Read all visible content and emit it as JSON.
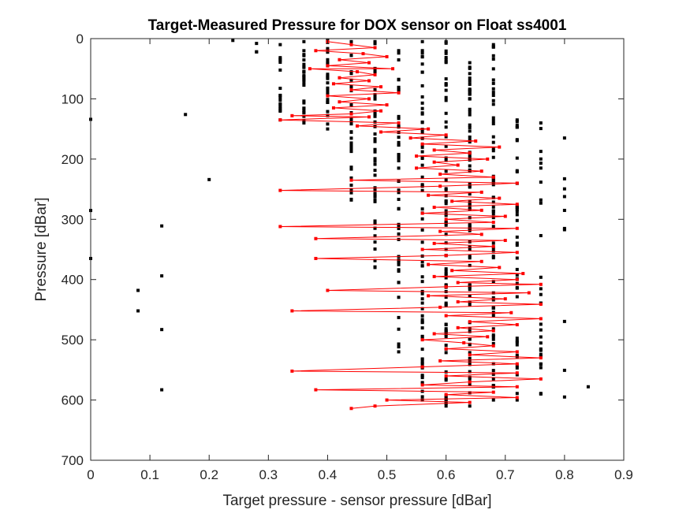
{
  "chart_data": {
    "type": "scatter",
    "title": "Target-Measured Pressure for DOX sensor on Float ss4001",
    "xlabel": "Target pressure - sensor pressure [dBar]",
    "ylabel": "Pressure [dBar]",
    "xlim": [
      0,
      0.9
    ],
    "ylim": [
      0,
      700
    ],
    "y_reversed": true,
    "grid": false,
    "x_ticks": [
      "0",
      "0.1",
      "0.2",
      "0.3",
      "0.4",
      "0.5",
      "0.6",
      "0.7",
      "0.8",
      "0.9"
    ],
    "y_ticks": [
      "0",
      "100",
      "200",
      "300",
      "400",
      "500",
      "600",
      "700"
    ],
    "colors": {
      "all_profiles": "#000000",
      "selected_profile": "#ff0000",
      "axes": "#262626"
    },
    "series": [
      {
        "style": "markers",
        "color": "#000000",
        "columns": [
          {
            "x": 0.0,
            "p_min": 134,
            "p_max": 365,
            "n": 3
          },
          {
            "x": 0.08,
            "p_min": 418,
            "p_max": 452,
            "n": 2
          },
          {
            "x": 0.12,
            "p_min": 311,
            "p_max": 583,
            "n": 4
          },
          {
            "x": 0.16,
            "p_min": 126,
            "p_max": 126,
            "n": 1
          },
          {
            "x": 0.2,
            "p_min": 234,
            "p_max": 234,
            "n": 1
          },
          {
            "x": 0.24,
            "p_min": 3,
            "p_max": 3,
            "n": 1
          },
          {
            "x": 0.28,
            "p_min": 8,
            "p_max": 22,
            "n": 3
          },
          {
            "x": 0.32,
            "p_min": 10,
            "p_max": 135,
            "n": 18
          },
          {
            "x": 0.36,
            "p_min": 5,
            "p_max": 140,
            "n": 28
          },
          {
            "x": 0.4,
            "p_min": 3,
            "p_max": 150,
            "n": 32
          },
          {
            "x": 0.44,
            "p_min": 5,
            "p_max": 268,
            "n": 36
          },
          {
            "x": 0.48,
            "p_min": 5,
            "p_max": 380,
            "n": 48
          },
          {
            "x": 0.52,
            "p_min": 20,
            "p_max": 520,
            "n": 52
          },
          {
            "x": 0.56,
            "p_min": 5,
            "p_max": 600,
            "n": 72
          },
          {
            "x": 0.6,
            "p_min": 5,
            "p_max": 610,
            "n": 80
          },
          {
            "x": 0.64,
            "p_min": 40,
            "p_max": 610,
            "n": 80
          },
          {
            "x": 0.68,
            "p_min": 10,
            "p_max": 600,
            "n": 65
          },
          {
            "x": 0.72,
            "p_min": 135,
            "p_max": 600,
            "n": 40
          },
          {
            "x": 0.76,
            "p_min": 140,
            "p_max": 590,
            "n": 28
          },
          {
            "x": 0.8,
            "p_min": 165,
            "p_max": 595,
            "n": 10
          },
          {
            "x": 0.84,
            "p_min": 578,
            "p_max": 578,
            "n": 1
          }
        ]
      },
      {
        "style": "line-markers",
        "color": "#ff0000",
        "points": [
          {
            "x": 0.4,
            "y": 5
          },
          {
            "x": 0.44,
            "y": 10
          },
          {
            "x": 0.48,
            "y": 15
          },
          {
            "x": 0.38,
            "y": 20
          },
          {
            "x": 0.46,
            "y": 25
          },
          {
            "x": 0.5,
            "y": 30
          },
          {
            "x": 0.42,
            "y": 35
          },
          {
            "x": 0.47,
            "y": 40
          },
          {
            "x": 0.4,
            "y": 45
          },
          {
            "x": 0.51,
            "y": 50
          },
          {
            "x": 0.37,
            "y": 50
          },
          {
            "x": 0.45,
            "y": 55
          },
          {
            "x": 0.48,
            "y": 60
          },
          {
            "x": 0.42,
            "y": 65
          },
          {
            "x": 0.47,
            "y": 70
          },
          {
            "x": 0.41,
            "y": 75
          },
          {
            "x": 0.49,
            "y": 80
          },
          {
            "x": 0.44,
            "y": 85
          },
          {
            "x": 0.52,
            "y": 90
          },
          {
            "x": 0.4,
            "y": 95
          },
          {
            "x": 0.47,
            "y": 100
          },
          {
            "x": 0.42,
            "y": 105
          },
          {
            "x": 0.5,
            "y": 110
          },
          {
            "x": 0.41,
            "y": 115
          },
          {
            "x": 0.49,
            "y": 120
          },
          {
            "x": 0.44,
            "y": 125
          },
          {
            "x": 0.34,
            "y": 128
          },
          {
            "x": 0.47,
            "y": 130
          },
          {
            "x": 0.32,
            "y": 135
          },
          {
            "x": 0.52,
            "y": 140
          },
          {
            "x": 0.45,
            "y": 145
          },
          {
            "x": 0.57,
            "y": 150
          },
          {
            "x": 0.49,
            "y": 155
          },
          {
            "x": 0.6,
            "y": 160
          },
          {
            "x": 0.54,
            "y": 165
          },
          {
            "x": 0.65,
            "y": 170
          },
          {
            "x": 0.56,
            "y": 175
          },
          {
            "x": 0.69,
            "y": 180
          },
          {
            "x": 0.58,
            "y": 185
          },
          {
            "x": 0.64,
            "y": 190
          },
          {
            "x": 0.55,
            "y": 195
          },
          {
            "x": 0.67,
            "y": 200
          },
          {
            "x": 0.58,
            "y": 205
          },
          {
            "x": 0.62,
            "y": 210
          },
          {
            "x": 0.55,
            "y": 215
          },
          {
            "x": 0.66,
            "y": 220
          },
          {
            "x": 0.59,
            "y": 225
          },
          {
            "x": 0.68,
            "y": 230
          },
          {
            "x": 0.44,
            "y": 235
          },
          {
            "x": 0.72,
            "y": 240
          },
          {
            "x": 0.59,
            "y": 245
          },
          {
            "x": 0.32,
            "y": 252
          },
          {
            "x": 0.66,
            "y": 255
          },
          {
            "x": 0.57,
            "y": 260
          },
          {
            "x": 0.69,
            "y": 265
          },
          {
            "x": 0.61,
            "y": 270
          },
          {
            "x": 0.72,
            "y": 275
          },
          {
            "x": 0.58,
            "y": 280
          },
          {
            "x": 0.66,
            "y": 285
          },
          {
            "x": 0.56,
            "y": 290
          },
          {
            "x": 0.7,
            "y": 295
          },
          {
            "x": 0.6,
            "y": 300
          },
          {
            "x": 0.68,
            "y": 305
          },
          {
            "x": 0.32,
            "y": 312
          },
          {
            "x": 0.72,
            "y": 315
          },
          {
            "x": 0.59,
            "y": 320
          },
          {
            "x": 0.66,
            "y": 325
          },
          {
            "x": 0.38,
            "y": 332
          },
          {
            "x": 0.7,
            "y": 335
          },
          {
            "x": 0.58,
            "y": 340
          },
          {
            "x": 0.68,
            "y": 345
          },
          {
            "x": 0.56,
            "y": 350
          },
          {
            "x": 0.72,
            "y": 355
          },
          {
            "x": 0.6,
            "y": 360
          },
          {
            "x": 0.38,
            "y": 365
          },
          {
            "x": 0.66,
            "y": 370
          },
          {
            "x": 0.57,
            "y": 375
          },
          {
            "x": 0.69,
            "y": 380
          },
          {
            "x": 0.61,
            "y": 385
          },
          {
            "x": 0.73,
            "y": 390
          },
          {
            "x": 0.58,
            "y": 395
          },
          {
            "x": 0.72,
            "y": 400
          },
          {
            "x": 0.62,
            "y": 405
          },
          {
            "x": 0.76,
            "y": 408
          },
          {
            "x": 0.6,
            "y": 412
          },
          {
            "x": 0.4,
            "y": 418
          },
          {
            "x": 0.74,
            "y": 422
          },
          {
            "x": 0.57,
            "y": 427
          },
          {
            "x": 0.7,
            "y": 432
          },
          {
            "x": 0.62,
            "y": 437
          },
          {
            "x": 0.76,
            "y": 441
          },
          {
            "x": 0.59,
            "y": 446
          },
          {
            "x": 0.34,
            "y": 452
          },
          {
            "x": 0.71,
            "y": 455
          },
          {
            "x": 0.6,
            "y": 460
          },
          {
            "x": 0.76,
            "y": 465
          },
          {
            "x": 0.64,
            "y": 470
          },
          {
            "x": 0.72,
            "y": 475
          },
          {
            "x": 0.62,
            "y": 480
          },
          {
            "x": 0.68,
            "y": 485
          },
          {
            "x": 0.58,
            "y": 490
          },
          {
            "x": 0.67,
            "y": 495
          },
          {
            "x": 0.56,
            "y": 500
          },
          {
            "x": 0.63,
            "y": 505
          },
          {
            "x": 0.68,
            "y": 510
          },
          {
            "x": 0.6,
            "y": 515
          },
          {
            "x": 0.72,
            "y": 520
          },
          {
            "x": 0.64,
            "y": 525
          },
          {
            "x": 0.76,
            "y": 530
          },
          {
            "x": 0.59,
            "y": 535
          },
          {
            "x": 0.72,
            "y": 540
          },
          {
            "x": 0.56,
            "y": 545
          },
          {
            "x": 0.34,
            "y": 552
          },
          {
            "x": 0.72,
            "y": 555
          },
          {
            "x": 0.6,
            "y": 560
          },
          {
            "x": 0.76,
            "y": 565
          },
          {
            "x": 0.64,
            "y": 570
          },
          {
            "x": 0.56,
            "y": 575
          },
          {
            "x": 0.72,
            "y": 578
          },
          {
            "x": 0.38,
            "y": 583
          },
          {
            "x": 0.68,
            "y": 587
          },
          {
            "x": 0.6,
            "y": 591
          },
          {
            "x": 0.72,
            "y": 596
          },
          {
            "x": 0.5,
            "y": 600
          },
          {
            "x": 0.64,
            "y": 604
          },
          {
            "x": 0.48,
            "y": 610
          },
          {
            "x": 0.44,
            "y": 614
          }
        ]
      }
    ]
  }
}
